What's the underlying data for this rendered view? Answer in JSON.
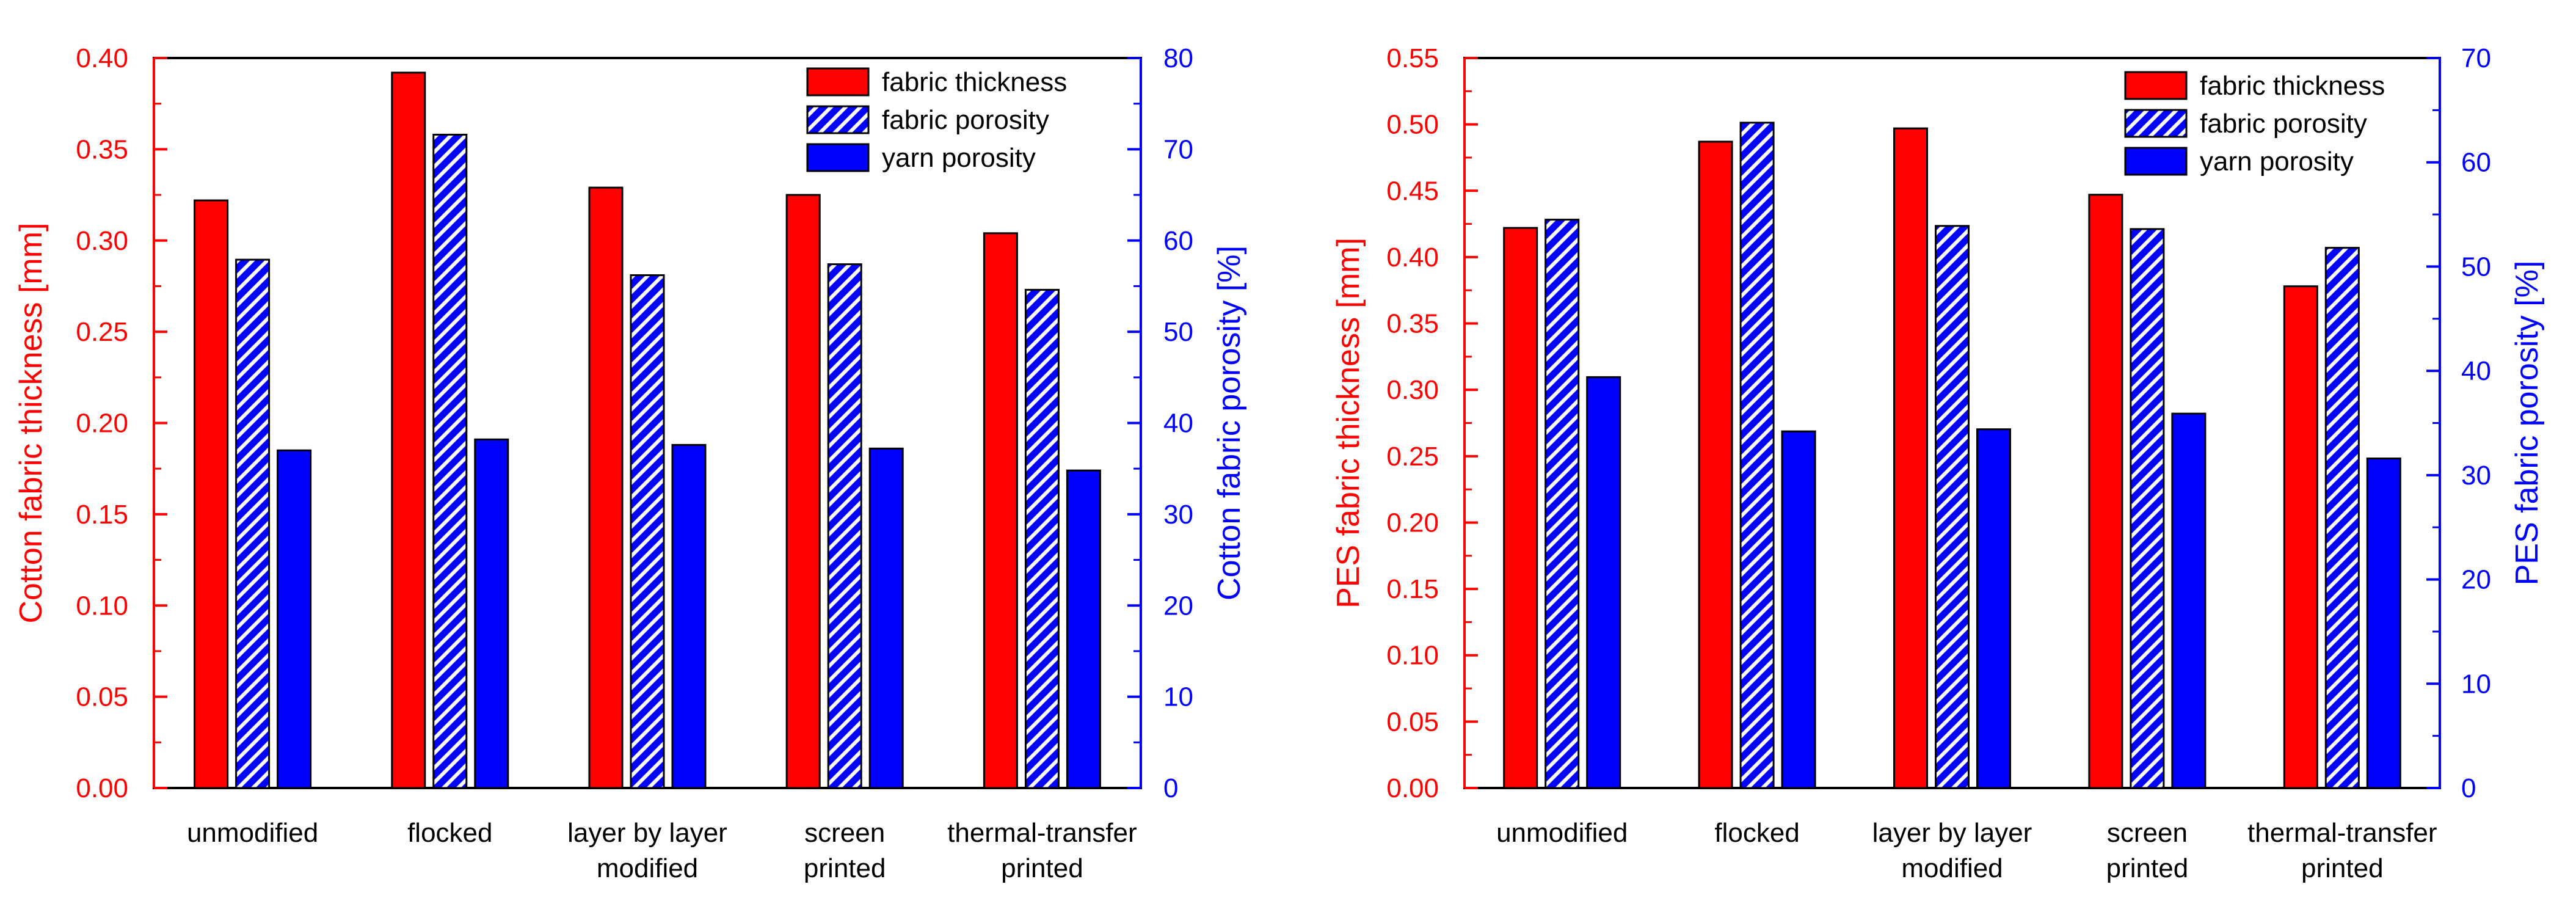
{
  "colors": {
    "thickness": "#ff0000",
    "porosity_fill": "#0000ff",
    "axis_left": "#ff0000",
    "axis_right": "#0000ff",
    "frame": "#000000"
  },
  "chart_data": [
    {
      "type": "bar",
      "title": "",
      "xlabel": "",
      "categories": [
        "unmodified",
        "flocked",
        "layer by layer modified",
        "screen printed",
        "thermal-transfer printed"
      ],
      "category_lines": [
        [
          "unmodified"
        ],
        [
          "flocked"
        ],
        [
          "layer by layer",
          "modified"
        ],
        [
          "screen",
          "printed"
        ],
        [
          "thermal-transfer",
          "printed"
        ]
      ],
      "y_left": {
        "label": "Cotton fabric thickness [mm]",
        "range": [
          0,
          0.4
        ],
        "ticks": [
          "0.00",
          "0.05",
          "0.10",
          "0.15",
          "0.20",
          "0.25",
          "0.30",
          "0.35",
          "0.40"
        ]
      },
      "y_right": {
        "label": "Cotton fabric porosity [%]",
        "range": [
          0,
          80
        ],
        "ticks": [
          "0",
          "10",
          "20",
          "30",
          "40",
          "50",
          "60",
          "70",
          "80"
        ]
      },
      "series": [
        {
          "name": "fabric thickness",
          "axis": "left",
          "style": "solid-red",
          "values": [
            0.322,
            0.392,
            0.329,
            0.325,
            0.304
          ]
        },
        {
          "name": "fabric porosity",
          "axis": "right",
          "style": "hatched-blue",
          "values": [
            57.9,
            71.6,
            56.2,
            57.4,
            54.6
          ]
        },
        {
          "name": "yarn porosity",
          "axis": "right",
          "style": "solid-blue",
          "values": [
            37.0,
            38.2,
            37.6,
            37.2,
            34.8
          ]
        }
      ],
      "legend": "top-right"
    },
    {
      "type": "bar",
      "title": "",
      "xlabel": "",
      "categories": [
        "unmodified",
        "flocked",
        "layer by layer modified",
        "screen printed",
        "thermal-transfer printed"
      ],
      "category_lines": [
        [
          "unmodified"
        ],
        [
          "flocked"
        ],
        [
          "layer by layer",
          "modified"
        ],
        [
          "screen",
          "printed"
        ],
        [
          "thermal-transfer",
          "printed"
        ]
      ],
      "y_left": {
        "label": "PES fabric thickness [mm]",
        "range": [
          0,
          0.55
        ],
        "ticks": [
          "0.00",
          "0.05",
          "0.10",
          "0.15",
          "0.20",
          "0.25",
          "0.30",
          "0.35",
          "0.40",
          "0.45",
          "0.50",
          "0.55"
        ]
      },
      "y_right": {
        "label": "PES fabric porosity [%]",
        "range": [
          0,
          70
        ],
        "ticks": [
          "0",
          "10",
          "20",
          "30",
          "40",
          "50",
          "60",
          "70"
        ]
      },
      "series": [
        {
          "name": "fabric thickness",
          "axis": "left",
          "style": "solid-red",
          "values": [
            0.422,
            0.487,
            0.497,
            0.447,
            0.378
          ]
        },
        {
          "name": "fabric porosity",
          "axis": "right",
          "style": "hatched-blue",
          "values": [
            54.5,
            63.8,
            53.9,
            53.6,
            51.8
          ]
        },
        {
          "name": "yarn porosity",
          "axis": "right",
          "style": "solid-blue",
          "values": [
            39.4,
            34.2,
            34.4,
            35.9,
            31.6
          ]
        }
      ],
      "legend": "top-right"
    }
  ]
}
